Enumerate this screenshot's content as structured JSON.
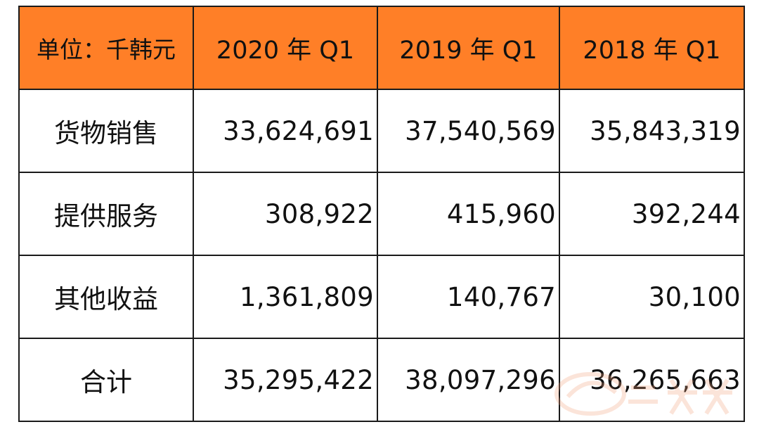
{
  "table": {
    "header": {
      "unit": "单位：千韩元",
      "columns": [
        "2020 年 Q1",
        "2019 年 Q1",
        "2018 年 Q1"
      ]
    },
    "rows": [
      {
        "label": "货物销售",
        "values": [
          "33,624,691",
          "37,540,569",
          "35,843,319"
        ]
      },
      {
        "label": "提供服务",
        "values": [
          "308,922",
          "415,960",
          "392,244"
        ]
      },
      {
        "label": "其他收益",
        "values": [
          "1,361,809",
          "140,767",
          "30,100"
        ]
      },
      {
        "label": "合计",
        "values": [
          "35,295,422",
          "38,097,296",
          "36,265,663"
        ]
      }
    ]
  },
  "colors": {
    "header_bg": "#ff7f27",
    "border": "#1a1a1a",
    "watermark": "#f3a07a"
  },
  "watermark": {
    "icon": "watermark-logo-icon"
  }
}
